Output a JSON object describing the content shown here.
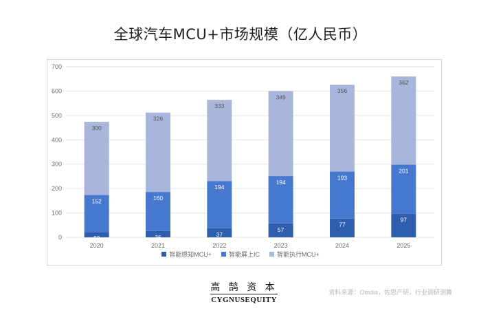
{
  "title": "全球汽车MCU+市场规模（亿人民币）",
  "chart_data": {
    "type": "bar",
    "stacked": true,
    "categories": [
      "2020",
      "2021",
      "2022",
      "2023",
      "2024",
      "2025"
    ],
    "series": [
      {
        "name": "智能感知MCU+",
        "values": [
          22,
          26,
          37,
          57,
          77,
          97
        ],
        "color": "#2f5eae"
      },
      {
        "name": "智能屏上IC",
        "values": [
          152,
          160,
          194,
          194,
          193,
          201
        ],
        "color": "#4778d0"
      },
      {
        "name": "智能执行MCU+",
        "values": [
          300,
          326,
          333,
          349,
          356,
          362
        ],
        "color": "#a9b6dc"
      }
    ],
    "ylim": [
      0,
      700
    ],
    "yticks": [
      0,
      100,
      200,
      300,
      400,
      500,
      600,
      700
    ],
    "grid": true,
    "legend": "bottom"
  },
  "brand": {
    "chinese": "高 鹄 资 本",
    "english": "CYGNUSEQUITY"
  },
  "source": "资料来源：Omdia，佐思产研，行业调研测算"
}
